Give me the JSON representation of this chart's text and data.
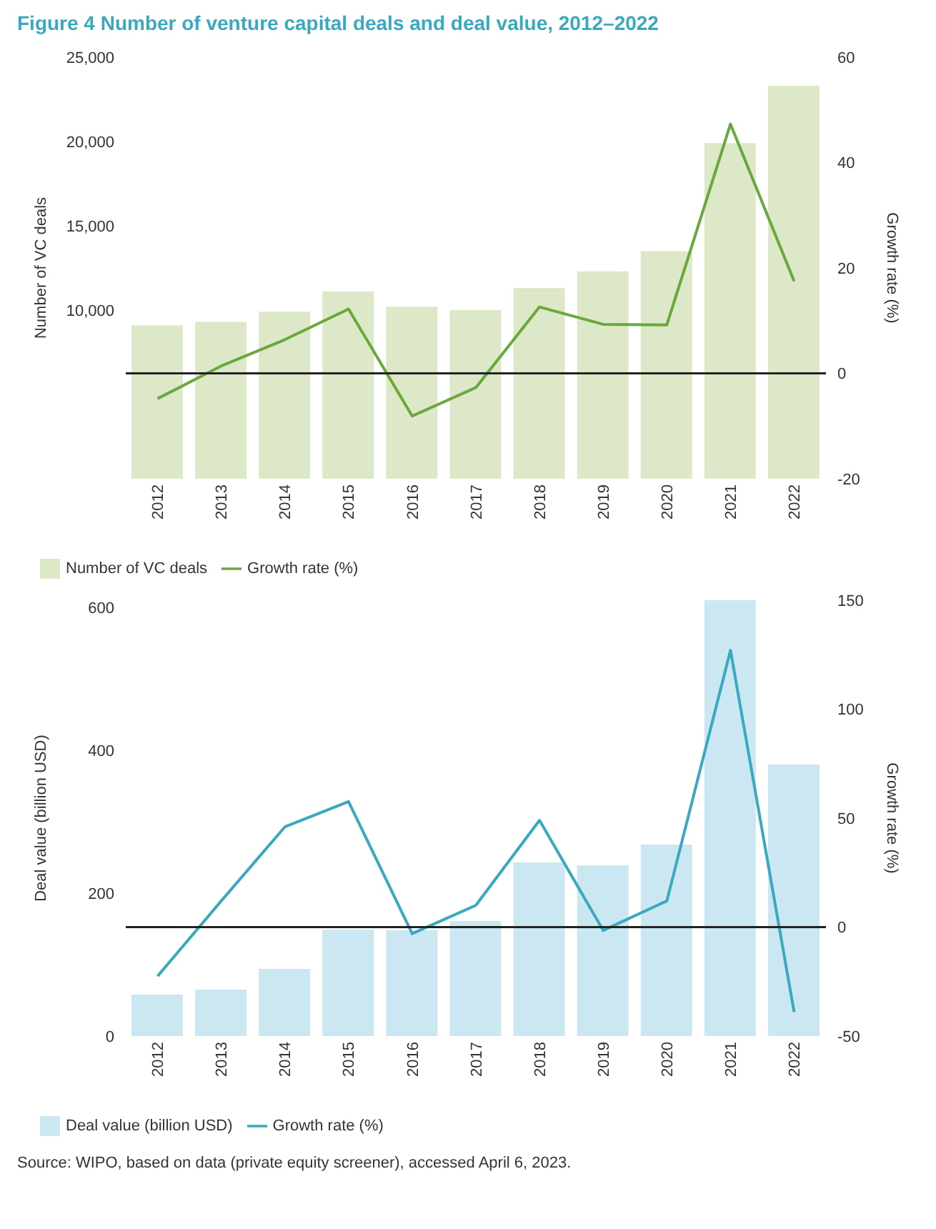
{
  "chart_data": [
    {
      "type": "bar",
      "title": "Figure 4  Number of venture capital deals and deal value, 2012–2022",
      "ylabel": "Number of VC deals",
      "y2label": "Growth rate (%)",
      "categories": [
        "2012",
        "2013",
        "2014",
        "2015",
        "2016",
        "2017",
        "2018",
        "2019",
        "2020",
        "2021",
        "2022"
      ],
      "series": [
        {
          "name": "Number of VC deals",
          "color": "#dde8c9",
          "values": [
            9100,
            9300,
            9900,
            11100,
            10200,
            10000,
            11300,
            12300,
            13500,
            19900,
            23300
          ]
        },
        {
          "name": "Growth rate (%)",
          "type": "line",
          "axis": "y2",
          "color": "#6aa83c",
          "values": [
            -4.8,
            1.4,
            6.4,
            12.2,
            -8.1,
            -2.7,
            12.6,
            9.3,
            9.2,
            47.3,
            17.5
          ]
        }
      ],
      "ylim": [
        0,
        25000
      ],
      "yticks": [
        {
          "value": 10000,
          "label": "10,000"
        },
        {
          "value": 15000,
          "label": "15,000"
        },
        {
          "value": 20000,
          "label": "20,000"
        },
        {
          "value": 25000,
          "label": "25,000"
        }
      ],
      "y2lim": [
        -20,
        60
      ],
      "y2ticks": [
        -20,
        0,
        20,
        40,
        60
      ],
      "ref_lines": [
        {
          "axis": "y2",
          "value": 0,
          "color": "#222222"
        }
      ],
      "grid": false,
      "legend": "bottom left",
      "marker": "none"
    },
    {
      "type": "bar",
      "ylabel": "Deal value (billion USD)",
      "y2label": "Growth rate (%)",
      "categories": [
        "2012",
        "2013",
        "2014",
        "2015",
        "2016",
        "2017",
        "2018",
        "2019",
        "2020",
        "2021",
        "2022"
      ],
      "series": [
        {
          "name": "Deal value (billion USD)",
          "color": "#cbe7f1",
          "values": [
            58,
            65,
            94,
            149,
            148,
            161,
            243,
            239,
            268,
            610,
            380
          ]
        },
        {
          "name": "Growth rate (%)",
          "type": "line",
          "axis": "y2",
          "color": "#3aa9bf",
          "values": [
            -22.5,
            12,
            46,
            57.6,
            -3,
            10,
            49,
            -1.5,
            12,
            127,
            -39
          ]
        }
      ],
      "ylim": [
        0,
        610
      ],
      "yticks": [
        0,
        200,
        400,
        600
      ],
      "y2lim": [
        -50,
        150
      ],
      "y2ticks": [
        -50,
        0,
        50,
        100,
        150
      ],
      "ref_lines": [
        {
          "axis": "y2",
          "value": 0,
          "color": "#222222"
        }
      ],
      "grid": false,
      "legend": "bottom left",
      "marker": "none",
      "annotations": [
        "Source: WIPO, based on data (private equity screener), accessed April 6, 2023."
      ]
    }
  ]
}
